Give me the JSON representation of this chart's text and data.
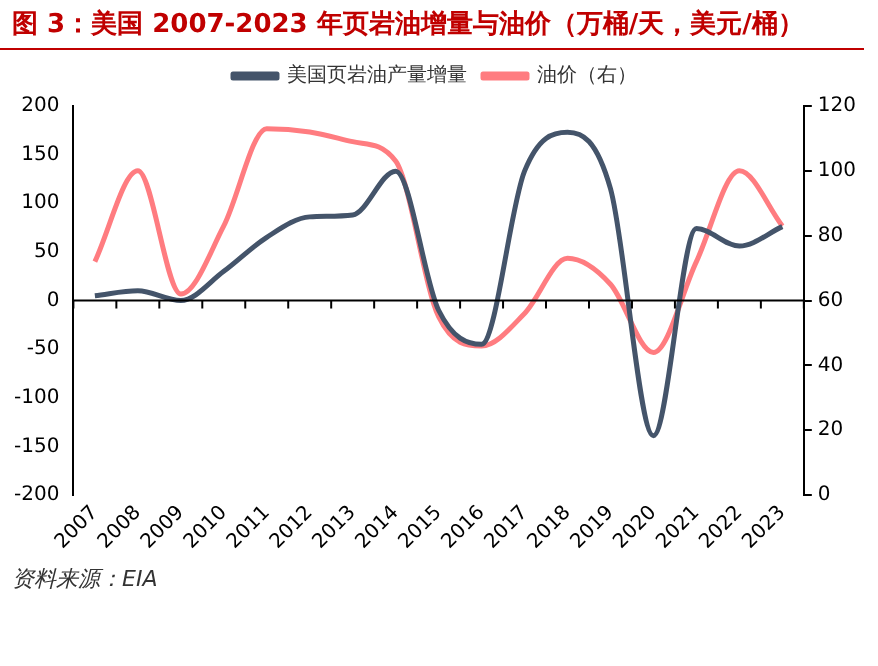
{
  "chart_data": {
    "type": "line",
    "title": "图 3：美国 2007-2023 年页岩油增量与油价（万桶/天，美元/桶）",
    "categories": [
      "2007",
      "2008",
      "2009",
      "2010",
      "2011",
      "2012",
      "2013",
      "2014",
      "2015",
      "2016",
      "2017",
      "2018",
      "2019",
      "2020",
      "2021",
      "2022",
      "2023"
    ],
    "series": [
      {
        "name": "美国页岩油产量增量",
        "color": "#44546a",
        "values": [
          5,
          10,
          0,
          30,
          65,
          86,
          88,
          133,
          -10,
          -45,
          133,
          173,
          115,
          -139,
          74,
          56,
          76
        ]
      },
      {
        "name": "油价（右）",
        "color": "#ff7c80",
        "axis": "y2",
        "values": [
          72,
          100,
          62,
          83,
          113,
          112,
          109,
          103,
          55,
          46,
          56,
          73,
          65,
          44,
          72,
          100,
          83
        ]
      }
    ],
    "ylim": [
      -200,
      200
    ],
    "yticks": [
      -200,
      -150,
      -100,
      -50,
      0,
      50,
      100,
      150,
      200
    ],
    "y2lim": [
      0,
      120
    ],
    "y2ticks": [
      0,
      20,
      40,
      60,
      80,
      100,
      120
    ],
    "legend": "top",
    "marker": "none",
    "line_style": "solid",
    "annotations": [
      "资料来源：EIA"
    ]
  }
}
